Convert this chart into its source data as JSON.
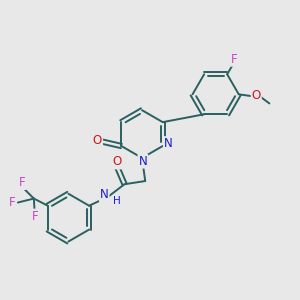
{
  "bg_color": "#e8e8e8",
  "bond_color": "#2a6060",
  "bond_width": 1.4,
  "dbo": 0.055,
  "atom_colors": {
    "N": "#1a1acc",
    "O": "#cc1a1a",
    "F": "#cc44cc",
    "H": "#1a1acc"
  },
  "afs": 8.5
}
